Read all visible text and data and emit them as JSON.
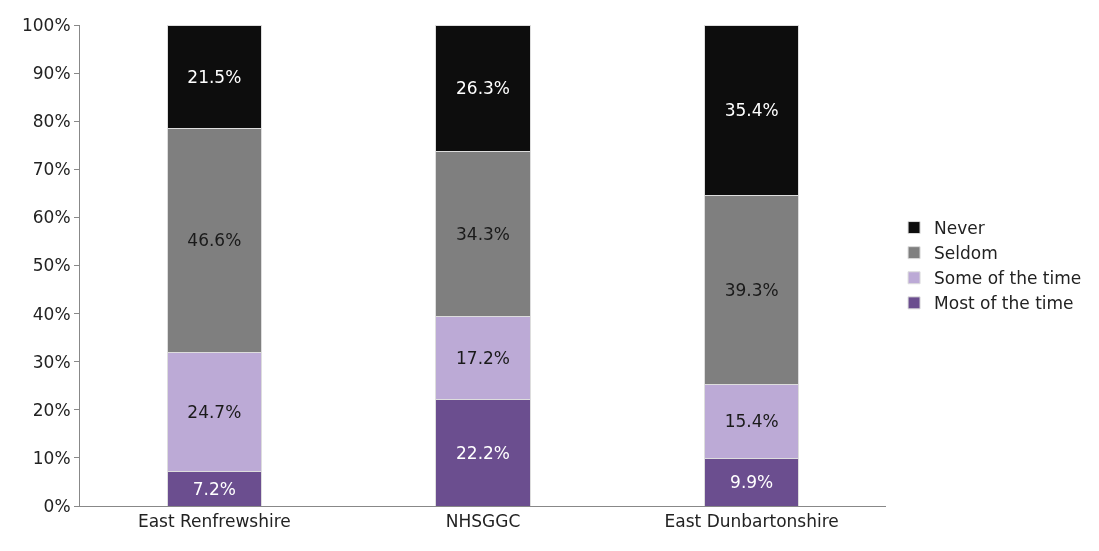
{
  "chart_data": {
    "type": "bar",
    "stacked": true,
    "categories": [
      "East Renfrewshire",
      "NHSGGC",
      "East Dunbartonshire"
    ],
    "series": [
      {
        "name": "Most of the time",
        "color": "#6b4e8f",
        "values": [
          7.2,
          22.2,
          9.9
        ],
        "value_labels": [
          "7.2%",
          "22.2%",
          "9.9%"
        ]
      },
      {
        "name": "Some of the time",
        "color": "#bcaad6",
        "values": [
          24.7,
          17.2,
          15.4
        ],
        "value_labels": [
          "24.7%",
          "17.2%",
          "15.4%"
        ]
      },
      {
        "name": "Seldom",
        "color": "#7f7f7f",
        "values": [
          46.6,
          34.3,
          39.3
        ],
        "value_labels": [
          "46.6%",
          "34.3%",
          "39.3%"
        ]
      },
      {
        "name": "Never",
        "color": "#0d0d0d",
        "values": [
          21.5,
          26.3,
          35.4
        ],
        "value_labels": [
          "21.5%",
          "26.3%",
          "35.4%"
        ]
      }
    ],
    "ylim": [
      0,
      100
    ],
    "yticks": [
      {
        "value": 0,
        "label": "0%"
      },
      {
        "value": 10,
        "label": "10%"
      },
      {
        "value": 20,
        "label": "20%"
      },
      {
        "value": 30,
        "label": "30%"
      },
      {
        "value": 40,
        "label": "40%"
      },
      {
        "value": 50,
        "label": "50%"
      },
      {
        "value": 60,
        "label": "60%"
      },
      {
        "value": 70,
        "label": "70%"
      },
      {
        "value": 80,
        "label": "80%"
      },
      {
        "value": 90,
        "label": "90%"
      },
      {
        "value": 100,
        "label": "100%"
      }
    ],
    "legend": "right"
  }
}
